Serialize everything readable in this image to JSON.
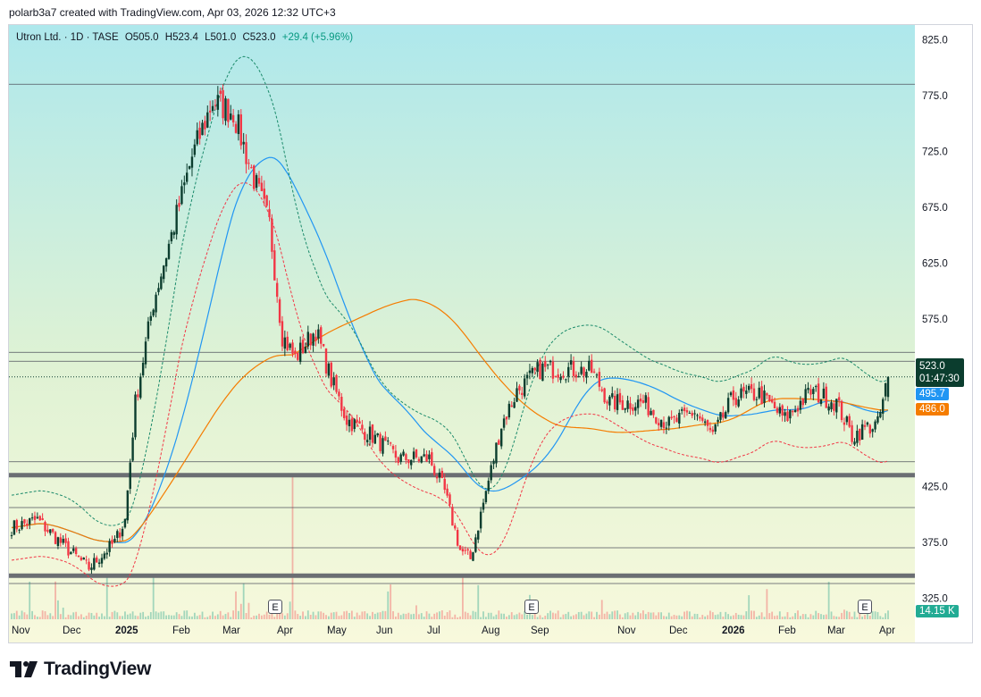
{
  "header": {
    "credit": "polarb3a7 created with TradingView.com, Apr 03, 2026 12:32 UTC+3"
  },
  "legend": {
    "symbol": "Utron Ltd. · 1D · TASE",
    "open": "O505.0",
    "high": "H523.4",
    "low": "L501.0",
    "close": "C523.0",
    "change": "+29.4 (+5.96%)"
  },
  "tags": {
    "last_price": "523.0",
    "countdown": "01:47:30",
    "ma_blue": "495.7",
    "ma_orange": "486.0",
    "volume": "14.15 K"
  },
  "earnings_marker": "E",
  "brand": {
    "name": "TradingView"
  },
  "colors": {
    "up": "#089981",
    "down": "#f23645",
    "candle_up_body": "#0b3d2e",
    "ma_blue": "#2196f3",
    "ma_orange": "#f57c00",
    "envelope_up": "#1b8a6b",
    "envelope_down": "#f23645",
    "bg_top": "#aee8ec",
    "bg_bottom": "#f6f8d8"
  },
  "chart_data": {
    "type": "candlestick",
    "symbol": "Utron Ltd.",
    "interval": "1D",
    "exchange": "TASE",
    "ylim": [
      310,
      838
    ],
    "y_ticks": [
      "825.0",
      "775.0",
      "725.0",
      "675.0",
      "625.0",
      "575.0",
      "425.0",
      "375.0",
      "325.0"
    ],
    "x_ticks": [
      {
        "label": "Nov",
        "bold": false
      },
      {
        "label": "Dec",
        "bold": false
      },
      {
        "label": "2025",
        "bold": true
      },
      {
        "label": "Feb",
        "bold": false
      },
      {
        "label": "Mar",
        "bold": false
      },
      {
        "label": "Apr",
        "bold": false
      },
      {
        "label": "May",
        "bold": false
      },
      {
        "label": "Jun",
        "bold": false
      },
      {
        "label": "Jul",
        "bold": false
      },
      {
        "label": "Aug",
        "bold": false
      },
      {
        "label": "Sep",
        "bold": false
      },
      {
        "label": "Nov",
        "bold": false
      },
      {
        "label": "Dec",
        "bold": false
      },
      {
        "label": "2026",
        "bold": true
      },
      {
        "label": "Feb",
        "bold": false
      },
      {
        "label": "Mar",
        "bold": false
      },
      {
        "label": "Apr",
        "bold": false
      }
    ],
    "horizontal_levels": [
      {
        "price": 785,
        "style": "thin"
      },
      {
        "price": 545,
        "style": "thin"
      },
      {
        "price": 537,
        "style": "thin"
      },
      {
        "price": 447,
        "style": "thin"
      },
      {
        "price": 435,
        "style": "thick"
      },
      {
        "price": 406,
        "style": "thin"
      },
      {
        "price": 370,
        "style": "thin"
      },
      {
        "price": 345,
        "style": "thick"
      },
      {
        "price": 338,
        "style": "thin"
      }
    ],
    "close_anchors": [
      {
        "t": 0,
        "p": 388
      },
      {
        "t": 10,
        "p": 395
      },
      {
        "t": 22,
        "p": 368
      },
      {
        "t": 30,
        "p": 352
      },
      {
        "t": 40,
        "p": 375
      },
      {
        "t": 44,
        "p": 395
      },
      {
        "t": 48,
        "p": 500
      },
      {
        "t": 55,
        "p": 590
      },
      {
        "t": 62,
        "p": 650
      },
      {
        "t": 70,
        "p": 720
      },
      {
        "t": 78,
        "p": 770
      },
      {
        "t": 86,
        "p": 760
      },
      {
        "t": 94,
        "p": 700
      },
      {
        "t": 100,
        "p": 660
      },
      {
        "t": 105,
        "p": 560
      },
      {
        "t": 110,
        "p": 540
      },
      {
        "t": 118,
        "p": 565
      },
      {
        "t": 124,
        "p": 520
      },
      {
        "t": 130,
        "p": 485
      },
      {
        "t": 140,
        "p": 470
      },
      {
        "t": 150,
        "p": 450
      },
      {
        "t": 162,
        "p": 450
      },
      {
        "t": 168,
        "p": 420
      },
      {
        "t": 174,
        "p": 368
      },
      {
        "t": 178,
        "p": 360
      },
      {
        "t": 184,
        "p": 420
      },
      {
        "t": 190,
        "p": 480
      },
      {
        "t": 196,
        "p": 510
      },
      {
        "t": 205,
        "p": 530
      },
      {
        "t": 215,
        "p": 530
      },
      {
        "t": 225,
        "p": 528
      },
      {
        "t": 232,
        "p": 500
      },
      {
        "t": 245,
        "p": 500
      },
      {
        "t": 255,
        "p": 480
      },
      {
        "t": 265,
        "p": 492
      },
      {
        "t": 272,
        "p": 470
      },
      {
        "t": 280,
        "p": 505
      },
      {
        "t": 290,
        "p": 508
      },
      {
        "t": 300,
        "p": 485
      },
      {
        "t": 310,
        "p": 510
      },
      {
        "t": 320,
        "p": 500
      },
      {
        "t": 326,
        "p": 470
      },
      {
        "t": 332,
        "p": 478
      },
      {
        "t": 336,
        "p": 480
      },
      {
        "t": 340,
        "p": 523
      }
    ],
    "last": {
      "open": 505.0,
      "high": 523.4,
      "low": 501.0,
      "close": 523.0,
      "change": 29.4,
      "change_pct": 5.96
    },
    "moving_averages": [
      {
        "color": "blue",
        "last": 495.7
      },
      {
        "color": "orange",
        "last": 486.0
      }
    ],
    "volume_last": "14.15 K"
  }
}
